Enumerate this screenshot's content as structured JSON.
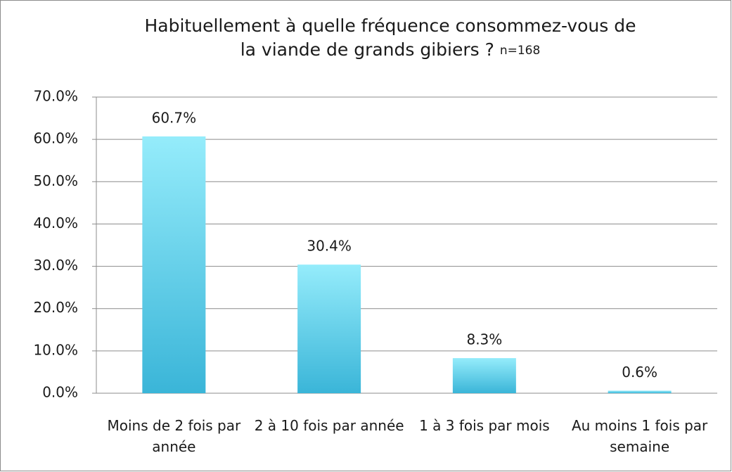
{
  "chart_data": {
    "type": "bar",
    "title_lines": [
      "Habituellement à quelle fréquence consommez-vous de",
      "la viande de grands gibiers ?"
    ],
    "note": "n=168",
    "categories": [
      "Moins de 2 fois par année",
      "2 à 10 fois par année",
      "1 à 3 fois par mois",
      "Au moins 1 fois par semaine"
    ],
    "values": [
      60.7,
      30.4,
      8.3,
      0.6
    ],
    "value_labels": [
      "60.7%",
      "30.4%",
      "8.3%",
      "0.6%"
    ],
    "color": "#3ab5d8",
    "ylim": [
      0,
      70
    ],
    "yticks": [
      {
        "value": 0,
        "label": "0.0%"
      },
      {
        "value": 10,
        "label": "10.0%"
      },
      {
        "value": 20,
        "label": "20.0%"
      },
      {
        "value": 30,
        "label": "30.0%"
      },
      {
        "value": 40,
        "label": "40.0%"
      },
      {
        "value": 50,
        "label": "50.0%"
      },
      {
        "value": 60,
        "label": "60.0%"
      },
      {
        "value": 70,
        "label": "70.0%"
      }
    ],
    "grid": true
  }
}
